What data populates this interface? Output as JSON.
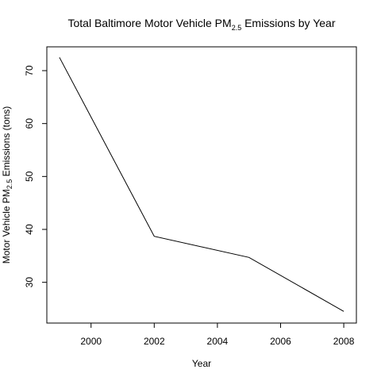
{
  "chart_data": {
    "type": "line",
    "title": {
      "prefix": "Total Baltimore Motor Vehicle PM",
      "subscript": "2.5",
      "suffix": " Emissions by Year"
    },
    "xlabel": "Year",
    "ylabel": {
      "prefix": "Motor Vehicle PM",
      "subscript": "2.5",
      "suffix": " Emissions (tons)"
    },
    "x": [
      1999,
      2002,
      2005,
      2008
    ],
    "y": [
      72.5,
      38.7,
      34.7,
      24.5
    ],
    "xlim": [
      1998.6,
      2008.4
    ],
    "ylim": [
      22.3,
      74.5
    ],
    "xticks": [
      2000,
      2002,
      2004,
      2006,
      2008
    ],
    "yticks": [
      30,
      40,
      50,
      60,
      70
    ],
    "grid": false,
    "line_color": "#000000"
  }
}
